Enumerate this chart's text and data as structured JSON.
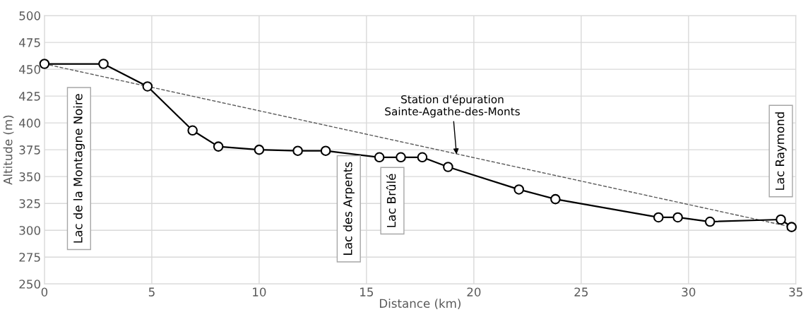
{
  "chart_data": {
    "type": "line",
    "xlabel": "Distance (km)",
    "ylabel": "Altitude (m)",
    "xlim": [
      0,
      35
    ],
    "xticks": [
      0,
      5,
      10,
      15,
      20,
      25,
      30,
      35
    ],
    "ylim": [
      250,
      500
    ],
    "yticks": [
      250,
      275,
      300,
      325,
      350,
      375,
      400,
      425,
      450,
      475,
      500
    ],
    "grid": true,
    "marker": "circle",
    "line_style": "solid",
    "series": [
      {
        "color": "#000000",
        "x": [
          0,
          2.75,
          4.8,
          6.9,
          8.1,
          10,
          11.8,
          13.1,
          15.6,
          16.6,
          17.6,
          18.8,
          22.1,
          23.8,
          28.6,
          29.5,
          31,
          34.3,
          34.8
        ],
        "values": [
          455,
          455,
          434,
          393,
          378,
          375,
          374,
          374,
          368,
          368,
          368,
          359,
          338,
          329,
          312,
          312,
          308,
          310,
          303
        ]
      },
      {
        "type": "line",
        "color": "#595959",
        "line_style": "dashed",
        "marker": "none",
        "x": [
          0,
          34.8
        ],
        "values": [
          455,
          303
        ]
      }
    ],
    "annotations": [
      "Lac de la Montagne Noire",
      "Lac des Arpents",
      "Lac Brûlé",
      "Lac Raymond",
      {
        "text": "Station d'épuration\nSainte-Agathe-des-Monts",
        "x": 19.2,
        "y": 369
      }
    ]
  }
}
